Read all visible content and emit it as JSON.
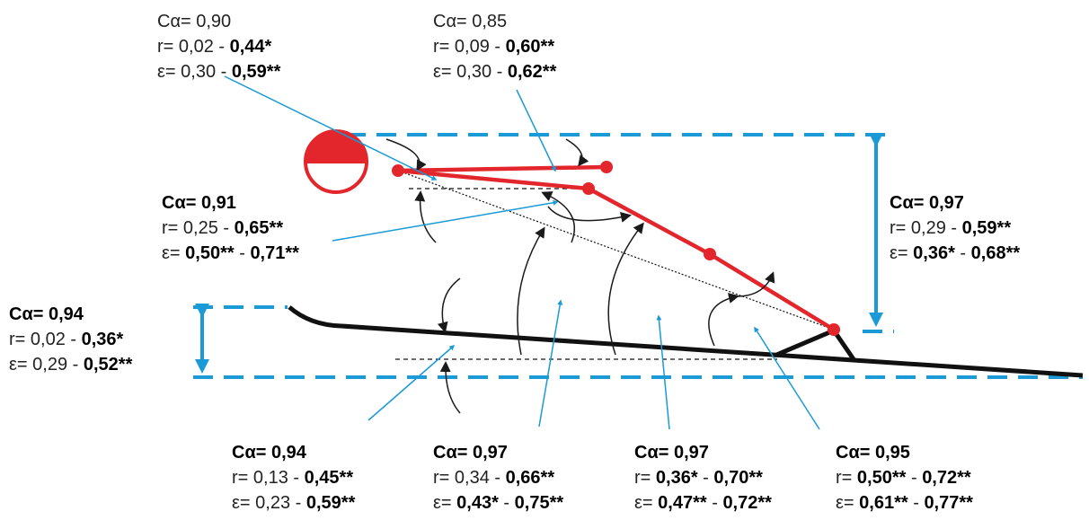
{
  "blocks": [
    {
      "lines": [
        [
          {
            "text": "Cα= 0,90",
            "bold": false
          }
        ],
        [
          {
            "text": "r= 0,02 - ",
            "bold": false
          },
          {
            "text": "0,44*",
            "bold": true
          }
        ],
        [
          {
            "text": "ε= 0,30 - ",
            "bold": false
          },
          {
            "text": "0,59**",
            "bold": true
          }
        ]
      ]
    },
    {
      "lines": [
        [
          {
            "text": "Cα= 0,85",
            "bold": false
          }
        ],
        [
          {
            "text": "r= 0,09 - ",
            "bold": false
          },
          {
            "text": "0,60**",
            "bold": true
          }
        ],
        [
          {
            "text": "ε= 0,30 - ",
            "bold": false
          },
          {
            "text": "0,62**",
            "bold": true
          }
        ]
      ]
    },
    {
      "lines": [
        [
          {
            "text": "Cα= 0,91",
            "bold": true
          }
        ],
        [
          {
            "text": "r= 0,25 - ",
            "bold": false
          },
          {
            "text": "0,65**",
            "bold": true
          }
        ],
        [
          {
            "text": "ε= ",
            "bold": false
          },
          {
            "text": "0,50**",
            "bold": true
          },
          {
            "text": " - ",
            "bold": false
          },
          {
            "text": "0,71**",
            "bold": true
          }
        ]
      ]
    },
    {
      "lines": [
        [
          {
            "text": "Cα= 0,97",
            "bold": true
          }
        ],
        [
          {
            "text": "r= 0,29 - ",
            "bold": false
          },
          {
            "text": "0,59**",
            "bold": true
          }
        ],
        [
          {
            "text": "ε= ",
            "bold": false
          },
          {
            "text": "0,36*",
            "bold": true
          },
          {
            "text": " - ",
            "bold": false
          },
          {
            "text": "0,68**",
            "bold": true
          }
        ]
      ]
    },
    {
      "lines": [
        [
          {
            "text": "Cα= 0,94",
            "bold": true
          }
        ],
        [
          {
            "text": "r= 0,02 - ",
            "bold": false
          },
          {
            "text": "0,36*",
            "bold": true
          }
        ],
        [
          {
            "text": "ε= 0,29 - ",
            "bold": false
          },
          {
            "text": "0,52**",
            "bold": true
          }
        ]
      ]
    },
    {
      "lines": [
        [
          {
            "text": "Cα= 0,94",
            "bold": true
          }
        ],
        [
          {
            "text": "r= 0,13 - ",
            "bold": false
          },
          {
            "text": "0,45**",
            "bold": true
          }
        ],
        [
          {
            "text": "ε= 0,23 - ",
            "bold": false
          },
          {
            "text": "0,59**",
            "bold": true
          }
        ]
      ]
    },
    {
      "lines": [
        [
          {
            "text": "Cα= 0,97",
            "bold": true
          }
        ],
        [
          {
            "text": "r= 0,34 - ",
            "bold": false
          },
          {
            "text": "0,66**",
            "bold": true
          }
        ],
        [
          {
            "text": "ε= ",
            "bold": false
          },
          {
            "text": "0,43*",
            "bold": true
          },
          {
            "text": " - ",
            "bold": false
          },
          {
            "text": "0,75**",
            "bold": true
          }
        ]
      ]
    },
    {
      "lines": [
        [
          {
            "text": "Cα= 0,97",
            "bold": true
          }
        ],
        [
          {
            "text": "r= ",
            "bold": false
          },
          {
            "text": "0,36*",
            "bold": true
          },
          {
            "text": " - ",
            "bold": false
          },
          {
            "text": "0,70**",
            "bold": true
          }
        ],
        [
          {
            "text": "ε= ",
            "bold": false
          },
          {
            "text": "0,47**",
            "bold": true
          },
          {
            "text": " - ",
            "bold": false
          },
          {
            "text": "0,72**",
            "bold": true
          }
        ]
      ]
    },
    {
      "lines": [
        [
          {
            "text": "Cα= 0,95",
            "bold": true
          }
        ],
        [
          {
            "text": "r= ",
            "bold": false
          },
          {
            "text": "0,50**",
            "bold": true
          },
          {
            "text": " - ",
            "bold": false
          },
          {
            "text": "0,72**",
            "bold": true
          }
        ],
        [
          {
            "text": "ε= ",
            "bold": false
          },
          {
            "text": "0,61**",
            "bold": true
          },
          {
            "text": " - ",
            "bold": false
          },
          {
            "text": "0,77**",
            "bold": true
          }
        ]
      ]
    }
  ]
}
